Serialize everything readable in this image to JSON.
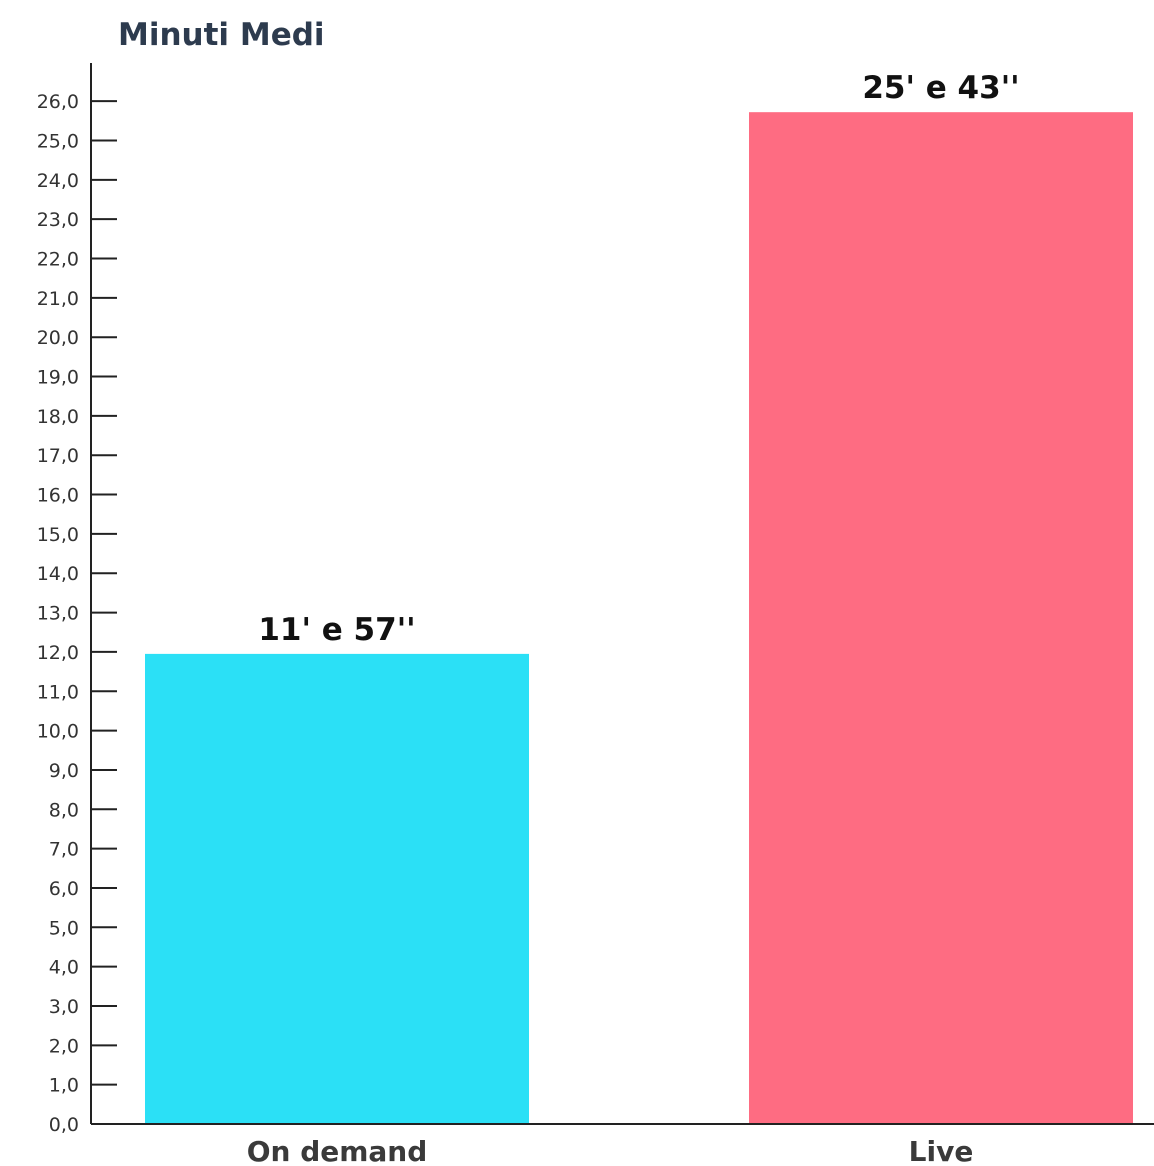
{
  "chart_data": {
    "type": "bar",
    "title": "Minuti Medi",
    "xlabel": "",
    "ylabel": "",
    "categories": [
      "On demand",
      "Live"
    ],
    "values": [
      11.95,
      25.72
    ],
    "data_labels": [
      "11' e 57''",
      "25' e 43''"
    ],
    "colors": [
      "#2be0f6",
      "#fe6c82"
    ],
    "ylim": [
      0,
      27
    ],
    "yticks": [
      0,
      1,
      2,
      3,
      4,
      5,
      6,
      7,
      8,
      9,
      10,
      11,
      12,
      13,
      14,
      15,
      16,
      17,
      18,
      19,
      20,
      21,
      22,
      23,
      24,
      25,
      26
    ],
    "ytick_labels": [
      "0,0",
      "1,0",
      "2,0",
      "3,0",
      "4,0",
      "5,0",
      "6,0",
      "7,0",
      "8,0",
      "9,0",
      "10,0",
      "11,0",
      "12,0",
      "13,0",
      "14,0",
      "15,0",
      "16,0",
      "17,0",
      "18,0",
      "19,0",
      "20,0",
      "21,0",
      "22,0",
      "23,0",
      "24,0",
      "25,0",
      "26,0"
    ],
    "grid": false,
    "legend": "none"
  }
}
